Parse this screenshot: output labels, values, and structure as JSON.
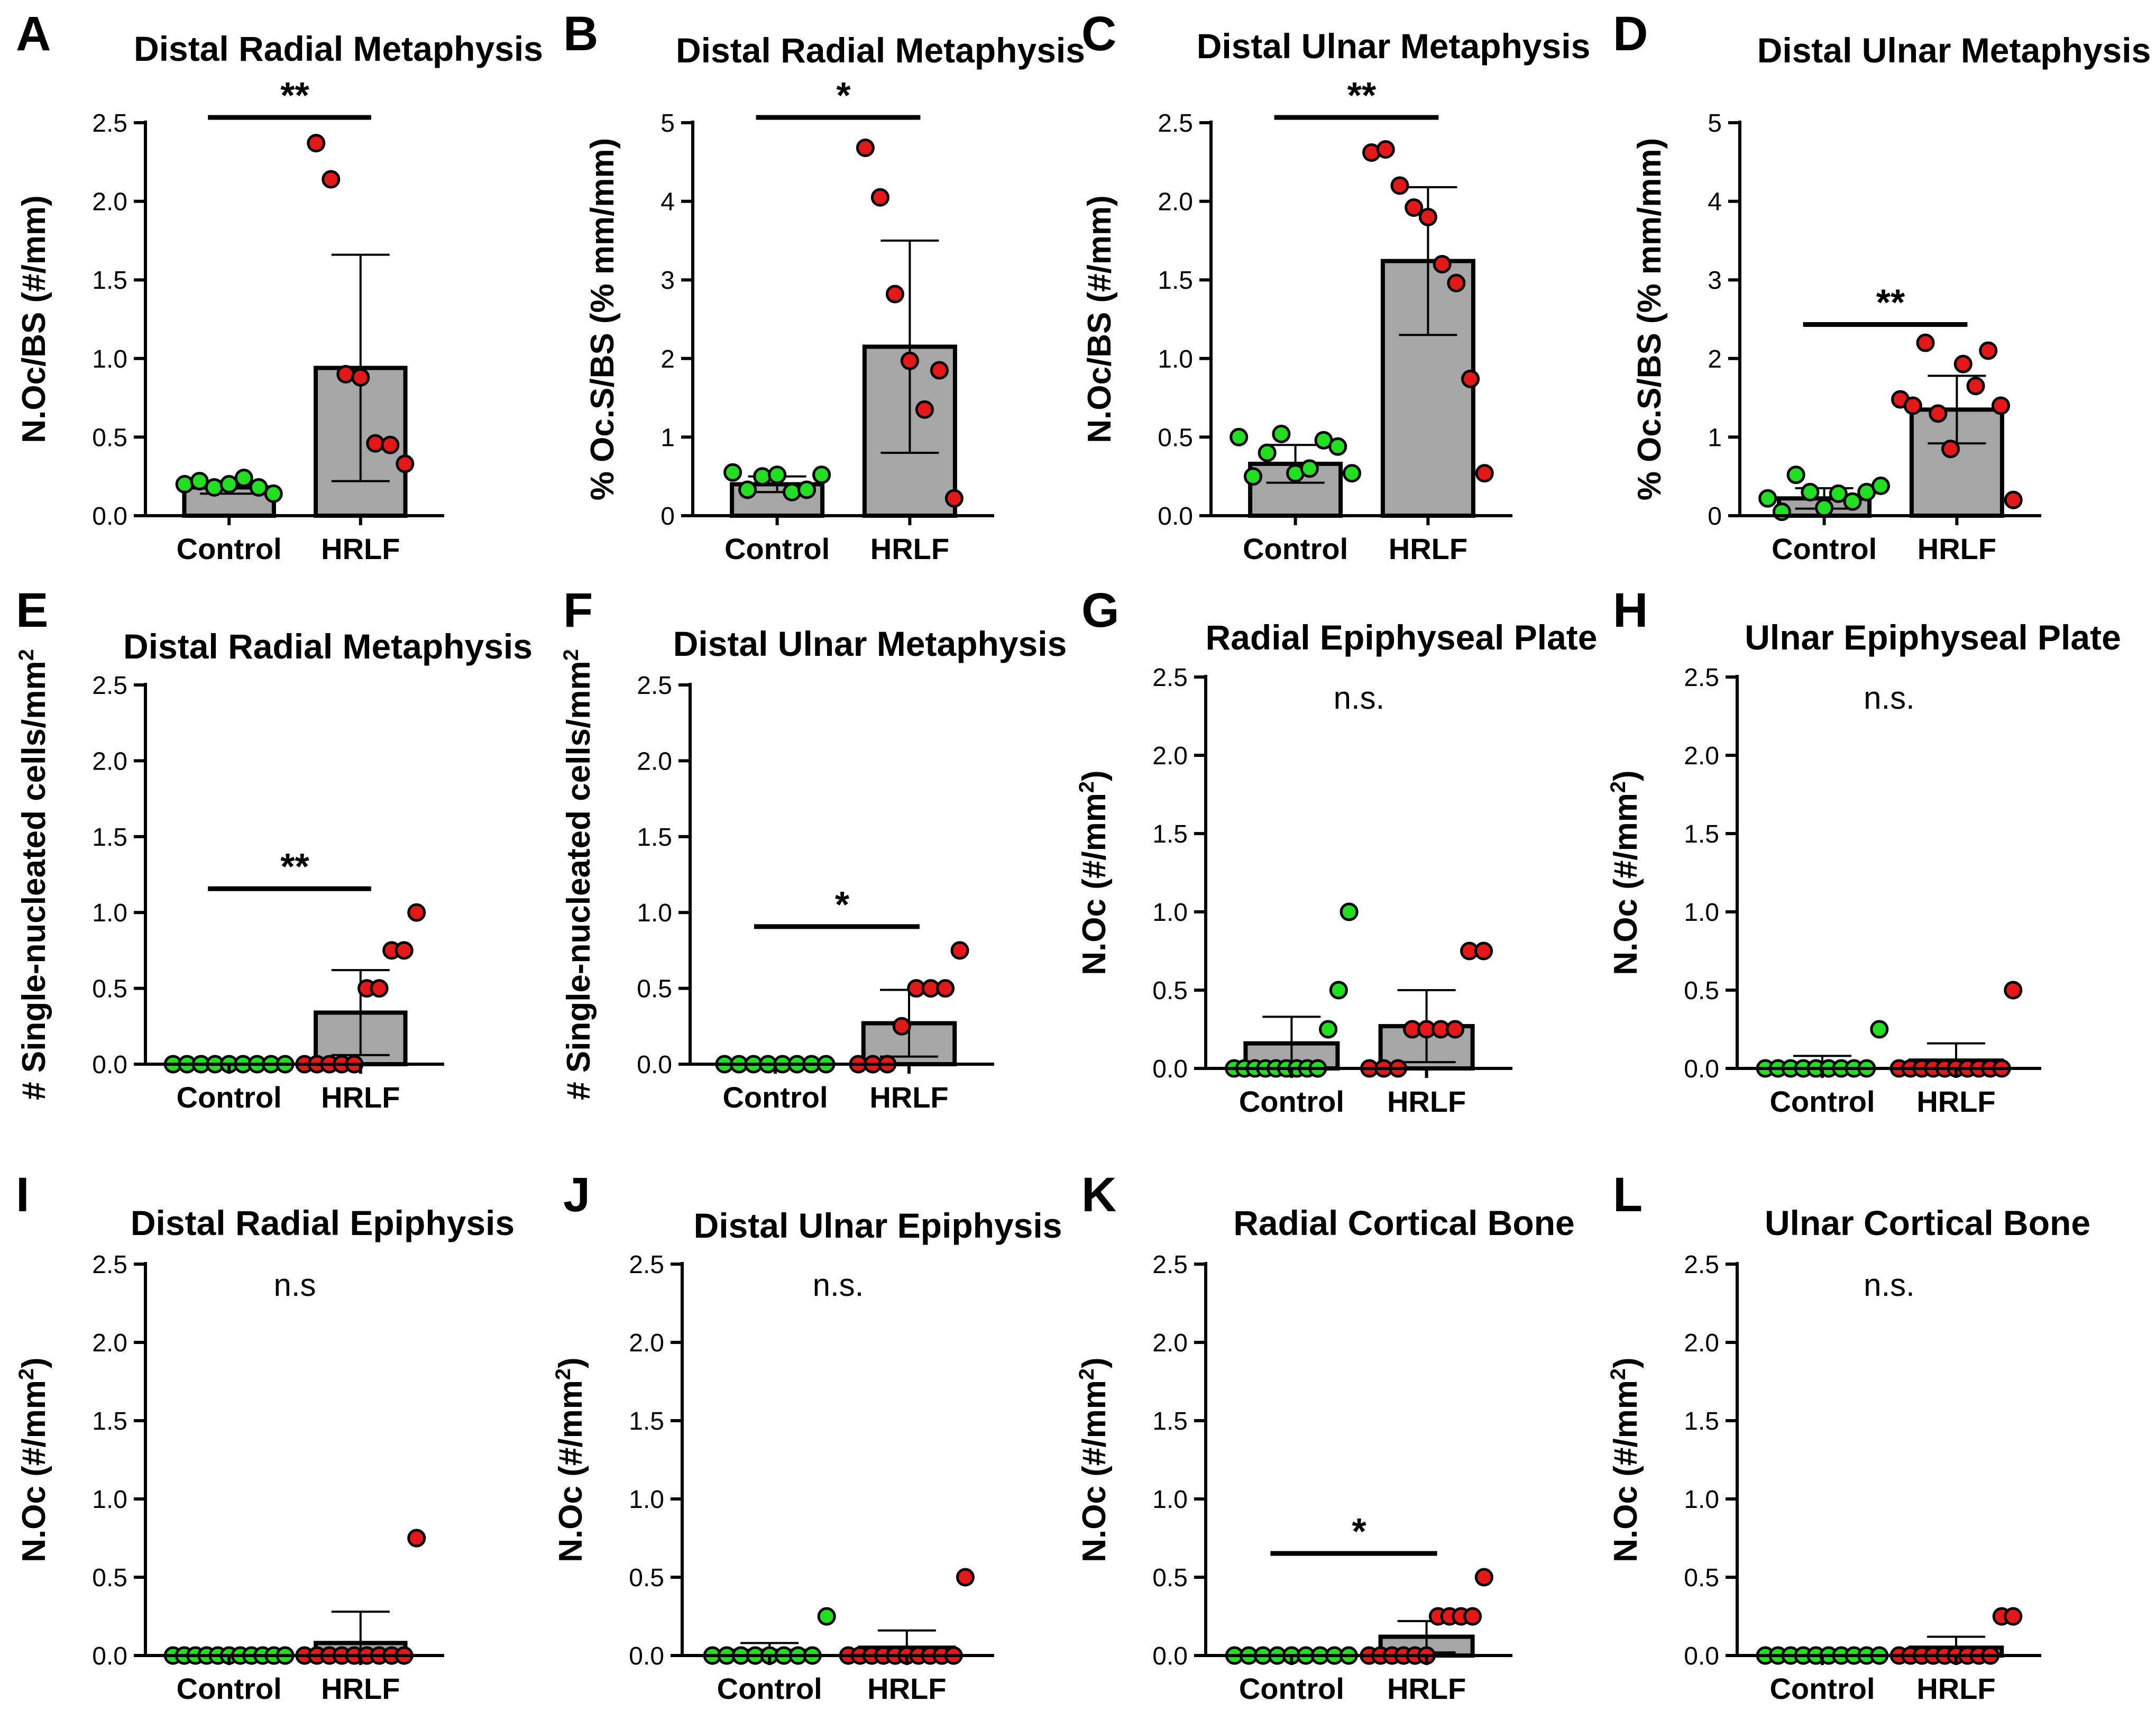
{
  "figure": {
    "group_labels": [
      "Control",
      "HRLF"
    ],
    "colors": {
      "control": "#22dd22",
      "hrlf": "#e31818",
      "bar": "#a6a6a6",
      "axis": "#000000"
    }
  },
  "chart_data": [
    {
      "panel": "A",
      "type": "bar",
      "title": "Distal Radial Metaphysis",
      "ylabel": "N.Oc/BS (#/mm)",
      "ylim": [
        0,
        2.5
      ],
      "yticks": [
        "0.0",
        "0.5",
        "1.0",
        "1.5",
        "2.0",
        "2.5"
      ],
      "categories": [
        "Control",
        "HRLF"
      ],
      "means": [
        0.18,
        0.94
      ],
      "sd": [
        0.04,
        0.72
      ],
      "points": [
        [
          0.2,
          0.22,
          0.18,
          0.2,
          0.24,
          0.18,
          0.14
        ],
        [
          2.37,
          2.14,
          0.9,
          0.88,
          0.46,
          0.45,
          0.33
        ]
      ],
      "significance": "**"
    },
    {
      "panel": "B",
      "type": "bar",
      "title": "Distal Radial Metaphysis",
      "ylabel": "% Oc.S/BS (% mm/mm)",
      "ylim": [
        0,
        5
      ],
      "yticks": [
        "0",
        "1",
        "2",
        "3",
        "4",
        "5"
      ],
      "categories": [
        "Control",
        "HRLF"
      ],
      "means": [
        0.4,
        2.15
      ],
      "sd": [
        0.1,
        1.35
      ],
      "points": [
        [
          0.55,
          0.33,
          0.5,
          0.52,
          0.3,
          0.33,
          0.52
        ],
        [
          4.68,
          4.05,
          2.82,
          1.97,
          1.35,
          1.85,
          0.22
        ]
      ],
      "significance": "*"
    },
    {
      "panel": "C",
      "type": "bar",
      "title": "Distal Ulnar Metaphysis",
      "ylabel": "N.Oc/BS (#/mm)",
      "ylim": [
        0,
        2.5
      ],
      "yticks": [
        "0.0",
        "0.5",
        "1.0",
        "1.5",
        "2.0",
        "2.5"
      ],
      "categories": [
        "Control",
        "HRLF"
      ],
      "means": [
        0.33,
        1.62
      ],
      "sd": [
        0.12,
        0.47
      ],
      "points": [
        [
          0.5,
          0.25,
          0.4,
          0.52,
          0.27,
          0.3,
          0.48,
          0.44,
          0.27
        ],
        [
          2.31,
          2.33,
          2.1,
          1.96,
          1.9,
          1.6,
          1.48,
          0.87,
          0.27
        ]
      ],
      "significance": "**"
    },
    {
      "panel": "D",
      "type": "bar",
      "title": "Distal Ulnar Metaphysis",
      "ylabel": "% Oc.S/BS (% mm/mm)",
      "ylim": [
        0,
        5
      ],
      "yticks": [
        "0",
        "1",
        "2",
        "3",
        "4",
        "5"
      ],
      "categories": [
        "Control",
        "HRLF"
      ],
      "means": [
        0.22,
        1.35
      ],
      "sd": [
        0.13,
        0.43
      ],
      "points": [
        [
          0.22,
          0.05,
          0.52,
          0.3,
          0.1,
          0.28,
          0.18,
          0.3,
          0.38
        ],
        [
          1.48,
          1.4,
          2.2,
          1.3,
          0.85,
          1.93,
          1.65,
          2.1,
          1.4,
          0.2
        ]
      ],
      "significance": "**"
    },
    {
      "panel": "E",
      "type": "bar",
      "title": "Distal Radial Metaphysis",
      "ylabel": "# Single-nucleated cells/mm",
      "ylabel_sup": "2",
      "ylim": [
        0,
        2.5
      ],
      "yticks": [
        "0.0",
        "0.5",
        "1.0",
        "1.5",
        "2.0",
        "2.5"
      ],
      "categories": [
        "Control",
        "HRLF"
      ],
      "means": [
        0.0,
        0.34
      ],
      "sd": [
        0.0,
        0.28
      ],
      "points": [
        [
          0,
          0,
          0,
          0,
          0,
          0,
          0,
          0,
          0
        ],
        [
          0,
          0,
          0,
          0,
          0,
          0.5,
          0.5,
          0.75,
          0.75,
          1.0
        ]
      ],
      "significance": "**"
    },
    {
      "panel": "F",
      "type": "bar",
      "title": "Distal Ulnar Metaphysis",
      "ylabel": "# Single-nucleated cells/mm",
      "ylabel_sup": "2",
      "ylim": [
        0,
        2.5
      ],
      "yticks": [
        "0.0",
        "0.5",
        "1.0",
        "1.5",
        "2.0",
        "2.5"
      ],
      "categories": [
        "Control",
        "HRLF"
      ],
      "means": [
        0.0,
        0.27
      ],
      "sd": [
        0.0,
        0.22
      ],
      "points": [
        [
          0,
          0,
          0,
          0,
          0,
          0,
          0,
          0
        ],
        [
          0,
          0,
          0,
          0.25,
          0.5,
          0.5,
          0.5,
          0.75
        ]
      ],
      "significance": "*"
    },
    {
      "panel": "G",
      "type": "bar",
      "title": "Radial Epiphyseal Plate",
      "ylabel": "N.Oc (#/mm",
      "ylabel_sup": "2",
      "ylabel_tail": ")",
      "ylim": [
        0,
        2.5
      ],
      "yticks": [
        "0.0",
        "0.5",
        "1.0",
        "1.5",
        "2.0",
        "2.5"
      ],
      "categories": [
        "Control",
        "HRLF"
      ],
      "means": [
        0.16,
        0.27
      ],
      "sd": [
        0.17,
        0.23
      ],
      "points": [
        [
          0,
          0,
          0,
          0,
          0,
          0,
          0,
          0,
          0,
          0.25,
          0.5,
          1.0
        ],
        [
          0,
          0,
          0,
          0.25,
          0.25,
          0.25,
          0.25,
          0.75,
          0.75
        ]
      ],
      "significance": "n.s."
    },
    {
      "panel": "H",
      "type": "bar",
      "title": "Ulnar Epiphyseal Plate",
      "ylabel": "N.Oc (#/mm",
      "ylabel_sup": "2",
      "ylabel_tail": ")",
      "ylim": [
        0,
        2.5
      ],
      "yticks": [
        "0.0",
        "0.5",
        "1.0",
        "1.5",
        "2.0",
        "2.5"
      ],
      "categories": [
        "Control",
        "HRLF"
      ],
      "means": [
        0.03,
        0.05
      ],
      "sd": [
        0.05,
        0.11
      ],
      "points": [
        [
          0,
          0,
          0,
          0,
          0,
          0,
          0,
          0,
          0,
          0.25
        ],
        [
          0,
          0,
          0,
          0,
          0,
          0,
          0,
          0,
          0,
          0,
          0.5
        ]
      ],
      "significance": "n.s."
    },
    {
      "panel": "I",
      "type": "bar",
      "title": "Distal Radial Epiphysis",
      "ylabel": "N.Oc (#/mm",
      "ylabel_sup": "2",
      "ylabel_tail": ")",
      "ylim": [
        0,
        2.5
      ],
      "yticks": [
        "0.0",
        "0.5",
        "1.0",
        "1.5",
        "2.0",
        "2.5"
      ],
      "categories": [
        "Control",
        "HRLF"
      ],
      "means": [
        0.0,
        0.08
      ],
      "sd": [
        0.0,
        0.2
      ],
      "points": [
        [
          0,
          0,
          0,
          0,
          0,
          0,
          0,
          0,
          0,
          0,
          0
        ],
        [
          0,
          0,
          0,
          0,
          0,
          0,
          0,
          0,
          0,
          0.75
        ]
      ],
      "significance": "n.s"
    },
    {
      "panel": "J",
      "type": "bar",
      "title": "Distal Ulnar Epiphysis",
      "ylabel": "N.Oc (#/mm",
      "ylabel_sup": "2",
      "ylabel_tail": ")",
      "ylim": [
        0,
        2.5
      ],
      "yticks": [
        "0.0",
        "0.5",
        "1.0",
        "1.5",
        "2.0",
        "2.5"
      ],
      "categories": [
        "Control",
        "HRLF"
      ],
      "means": [
        0.03,
        0.05
      ],
      "sd": [
        0.05,
        0.11
      ],
      "points": [
        [
          0,
          0,
          0,
          0,
          0,
          0,
          0,
          0,
          0.25
        ],
        [
          0,
          0,
          0,
          0,
          0,
          0,
          0,
          0,
          0,
          0,
          0.5
        ]
      ],
      "significance": "n.s."
    },
    {
      "panel": "K",
      "type": "bar",
      "title": "Radial Cortical Bone",
      "ylabel": "N.Oc (#/mm",
      "ylabel_sup": "2",
      "ylabel_tail": ")",
      "ylim": [
        0,
        2.5
      ],
      "yticks": [
        "0.0",
        "0.5",
        "1.0",
        "1.5",
        "2.0",
        "2.5"
      ],
      "categories": [
        "Control",
        "HRLF"
      ],
      "means": [
        0.0,
        0.12
      ],
      "sd": [
        0.0,
        0.1
      ],
      "points": [
        [
          0,
          0,
          0,
          0,
          0,
          0,
          0,
          0,
          0
        ],
        [
          0,
          0,
          0,
          0,
          0,
          0,
          0.25,
          0.25,
          0.25,
          0.25,
          0.5
        ]
      ],
      "significance": "*"
    },
    {
      "panel": "L",
      "type": "bar",
      "title": "Ulnar Cortical Bone",
      "ylabel": "N.Oc (#/mm",
      "ylabel_sup": "2",
      "ylabel_tail": ")",
      "ylim": [
        0,
        2.5
      ],
      "yticks": [
        "0.0",
        "0.5",
        "1.0",
        "1.5",
        "2.0",
        "2.5"
      ],
      "categories": [
        "Control",
        "HRLF"
      ],
      "means": [
        0.0,
        0.05
      ],
      "sd": [
        0.0,
        0.07
      ],
      "points": [
        [
          0,
          0,
          0,
          0,
          0,
          0,
          0,
          0,
          0,
          0
        ],
        [
          0,
          0,
          0,
          0,
          0,
          0,
          0,
          0,
          0,
          0.25,
          0.25
        ]
      ],
      "significance": "n.s."
    }
  ]
}
